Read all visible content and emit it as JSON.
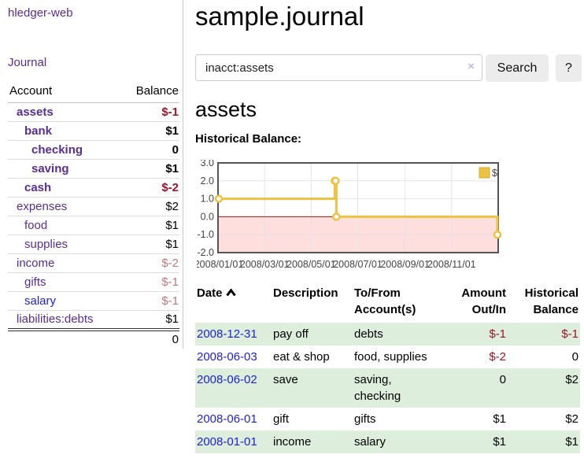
{
  "sidebar": {
    "app_title": "hledger-web",
    "journal_label": "Journal",
    "table": {
      "account_header": "Account",
      "balance_header": "Balance",
      "rows": [
        {
          "account": "assets",
          "balance": "$-1"
        },
        {
          "account": "bank",
          "balance": "$1"
        },
        {
          "account": "checking",
          "balance": "0"
        },
        {
          "account": "saving",
          "balance": "$1"
        },
        {
          "account": "cash",
          "balance": "$-2"
        },
        {
          "account": "expenses",
          "balance": "$2"
        },
        {
          "account": "food",
          "balance": "$1"
        },
        {
          "account": "supplies",
          "balance": "$1"
        },
        {
          "account": "income",
          "balance": "$-2"
        },
        {
          "account": "gifts",
          "balance": "$-1"
        },
        {
          "account": "salary",
          "balance": "$-1"
        },
        {
          "account": "liabilities:debts",
          "balance": "$1"
        }
      ],
      "total": "0"
    }
  },
  "header": {
    "title": "sample.journal"
  },
  "search": {
    "value": "inacct:assets",
    "clear_icon": "×",
    "button_label": "Search",
    "help_label": "?"
  },
  "account_page": {
    "heading": "assets",
    "chart_label": "Historical Balance:"
  },
  "chart_data": {
    "type": "line",
    "style": "step",
    "title": "Historical Balance",
    "series": [
      {
        "name": "$",
        "points": [
          {
            "date": "2008-01-01",
            "value": 1
          },
          {
            "date": "2008-06-01",
            "value": 2
          },
          {
            "date": "2008-06-02",
            "value": 2
          },
          {
            "date": "2008-06-03",
            "value": 0
          },
          {
            "date": "2008-12-31",
            "value": -1
          }
        ]
      }
    ],
    "x_range": [
      "2008-01-01",
      "2008-12-31"
    ],
    "ylim": [
      -2,
      3
    ],
    "y_ticks": [
      "3.0",
      "2.0",
      "1.0",
      "0.0",
      "-1.0",
      "-2.0"
    ],
    "x_ticks": [
      "2008/01/01",
      "2008/03/01",
      "2008/05/01",
      "2008/07/01",
      "2008/09/01",
      "2008/11/01"
    ],
    "legend": {
      "label": "$",
      "position": "top-right"
    },
    "grid": true,
    "colors": {
      "line": "#edc240",
      "marker_fill": "#ffffff",
      "negative_zone": "#ffdede",
      "zero_line": "#8b1a1a",
      "grid": "#e4e4e4",
      "border": "#545454",
      "tick_label": "#444444"
    }
  },
  "register": {
    "columns": {
      "date": "Date",
      "description": "Description",
      "accounts": "To/From Account(s)",
      "amount": "Amount Out/In",
      "balance": "Historical Balance"
    },
    "sort": "date ascending",
    "rows": [
      {
        "date": "2008-12-31",
        "description": "pay off",
        "accounts": "debts",
        "amount": "$-1",
        "balance": "$-1"
      },
      {
        "date": "2008-06-03",
        "description": "eat & shop",
        "accounts": "food, supplies",
        "amount": "$-2",
        "balance": "0"
      },
      {
        "date": "2008-06-02",
        "description": "save",
        "accounts": "saving, checking",
        "amount": "0",
        "balance": "$2"
      },
      {
        "date": "2008-06-01",
        "description": "gift",
        "accounts": "gifts",
        "amount": "$1",
        "balance": "$2"
      },
      {
        "date": "2008-01-01",
        "description": "income",
        "accounts": "salary",
        "amount": "$1",
        "balance": "$1"
      }
    ]
  },
  "colors": {
    "link_purple": "#5a2d91",
    "link_blue": "#1f1fd6",
    "negative_strong": "#9c1528",
    "negative_soft": "#c0777d",
    "row_green": "#ddeedd",
    "button_gray": "#ececec"
  }
}
